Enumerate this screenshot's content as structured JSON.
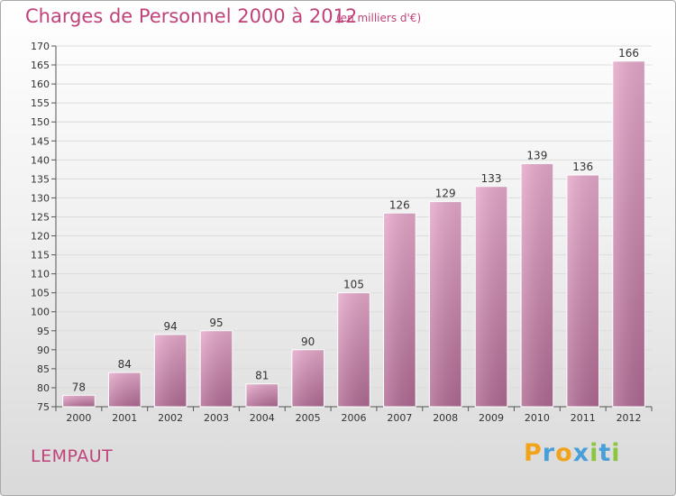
{
  "header": {
    "title": "Charges de Personnel 2000 à 2012",
    "subtitle": "(en milliers d'€)"
  },
  "footer": {
    "commune": "LEMPAUT",
    "logo": {
      "text": "Proxiti",
      "letters": [
        "P",
        "r",
        "o",
        "x",
        "i",
        "t",
        "i"
      ],
      "colors": [
        "#f2a31c",
        "#4a9fd8",
        "#f2a31c",
        "#4a9fd8",
        "#8cc63f",
        "#4a9fd8",
        "#8cc63f"
      ]
    }
  },
  "chart_data": {
    "type": "bar",
    "categories": [
      "2000",
      "2001",
      "2002",
      "2003",
      "2004",
      "2005",
      "2006",
      "2007",
      "2008",
      "2009",
      "2010",
      "2011",
      "2012"
    ],
    "values": [
      78,
      84,
      94,
      95,
      81,
      90,
      105,
      126,
      129,
      133,
      139,
      136,
      166
    ],
    "title": "Charges de Personnel 2000 à 2012",
    "unit_label": "(en milliers d'€)",
    "xlabel": "",
    "ylabel": "",
    "ylim": [
      75,
      170
    ],
    "yticks": [
      75,
      80,
      85,
      90,
      95,
      100,
      105,
      110,
      115,
      120,
      125,
      130,
      135,
      140,
      145,
      150,
      155,
      160,
      165,
      170
    ],
    "grid": true,
    "bar_color": "#d98db5"
  }
}
